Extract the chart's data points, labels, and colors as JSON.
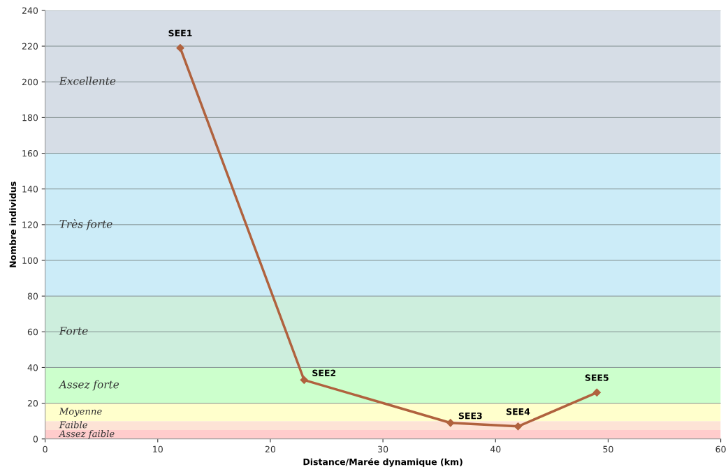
{
  "chart_data": {
    "type": "line",
    "xlabel": "Distance/Marée dynamique (km)",
    "ylabel": "Nombre individus",
    "x": [
      12,
      23,
      36,
      42,
      49
    ],
    "series": [
      {
        "color": "#b0623e",
        "values": [
          219,
          33,
          9,
          7,
          26
        ]
      }
    ],
    "marker": "diamond",
    "line_style": "solid",
    "grid": "y",
    "xlim": [
      0,
      60
    ],
    "xticks": [
      0,
      10,
      20,
      30,
      40,
      50,
      60
    ],
    "ylim": [
      0,
      240
    ],
    "yticks": [
      0,
      20,
      40,
      60,
      80,
      100,
      120,
      140,
      160,
      180,
      200,
      220,
      240
    ],
    "bands": [
      {
        "axis": "y",
        "from": 0,
        "to": 5,
        "label": "Assez faible",
        "color": "#ffcccc"
      },
      {
        "axis": "y",
        "from": 5,
        "to": 10,
        "label": "Faible",
        "color": "#fde3d6"
      },
      {
        "axis": "y",
        "from": 10,
        "to": 20,
        "label": "Moyenne",
        "color": "#ffffcc"
      },
      {
        "axis": "y",
        "from": 20,
        "to": 40,
        "label": "Assez forte",
        "color": "#ccffcc"
      },
      {
        "axis": "y",
        "from": 40,
        "to": 80,
        "label": "Forte",
        "color": "#cdeedd"
      },
      {
        "axis": "y",
        "from": 80,
        "to": 160,
        "label": "Très forte",
        "color": "#ccecf8"
      },
      {
        "axis": "y",
        "from": 160,
        "to": 240,
        "label": "Excellente",
        "color": "#d6dde6"
      }
    ],
    "annotations": [
      {
        "text": "SEE1",
        "x": 12,
        "y": 219
      },
      {
        "text": "SEE2",
        "x": 23,
        "y": 33
      },
      {
        "text": "SEE3",
        "x": 36,
        "y": 9
      },
      {
        "text": "SEE4",
        "x": 42,
        "y": 7
      },
      {
        "text": "SEE5",
        "x": 49,
        "y": 26
      }
    ]
  }
}
